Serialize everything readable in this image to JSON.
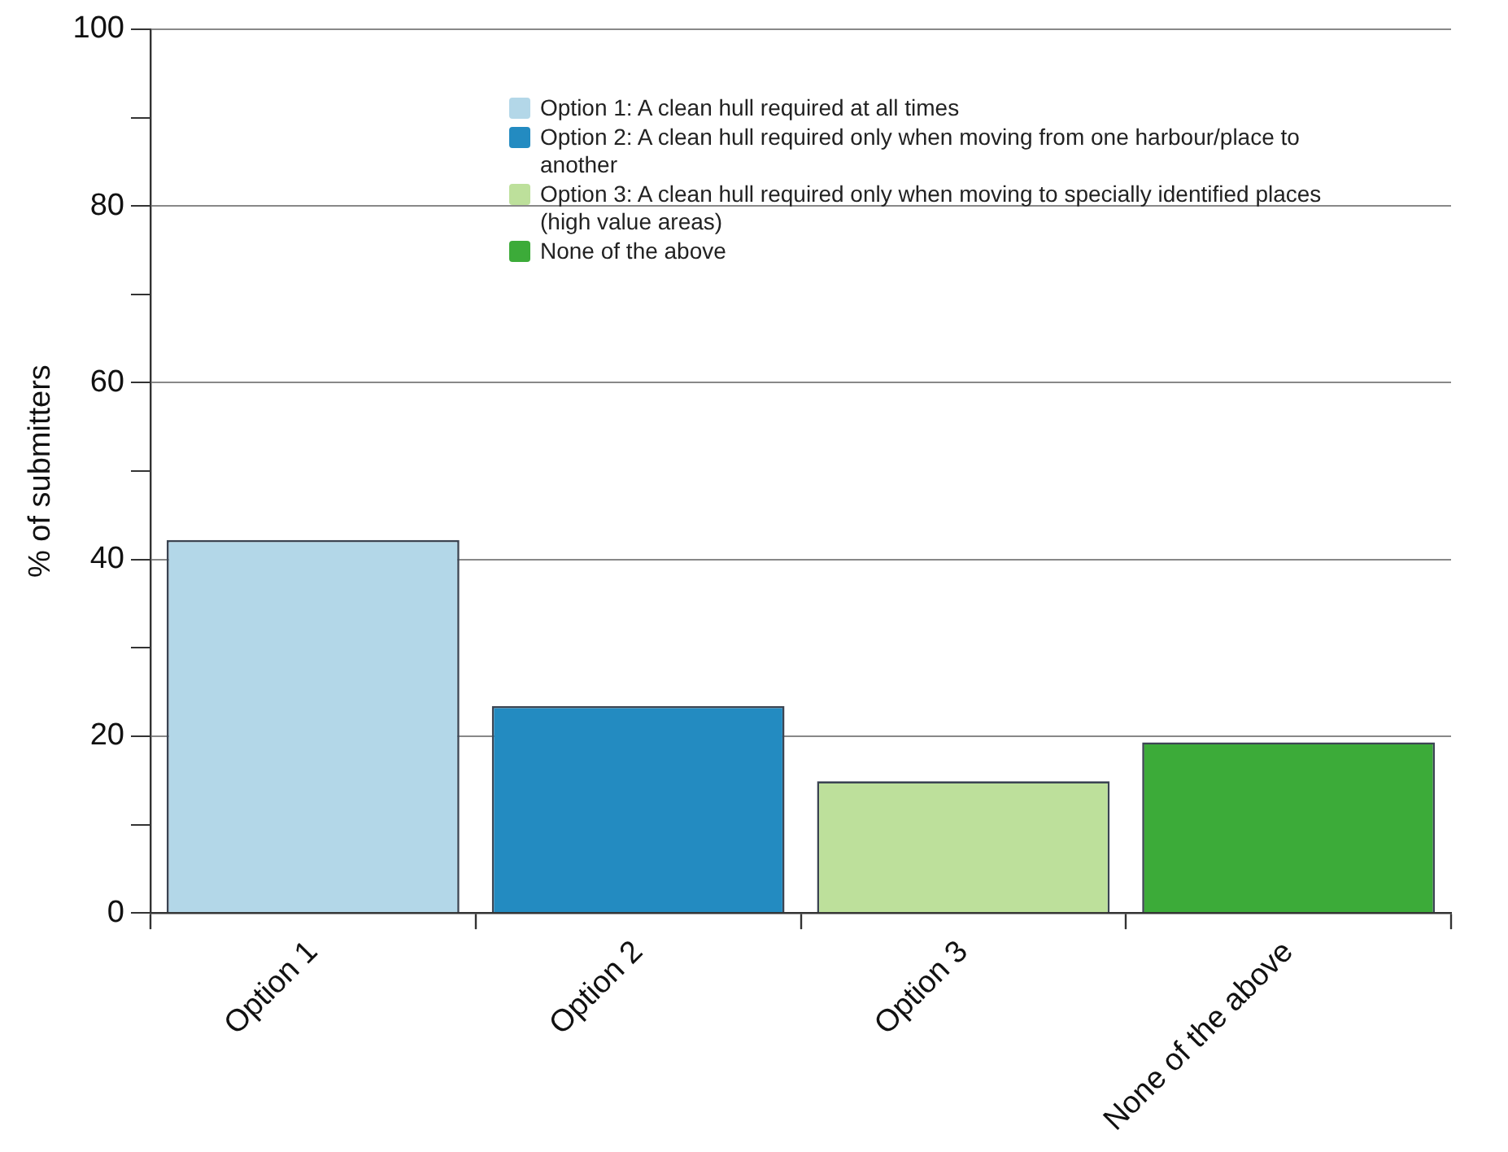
{
  "chart_data": {
    "type": "bar",
    "ylabel": "% of submitters",
    "categories": [
      "Option 1",
      "Option 2",
      "Option 3",
      "None of the above"
    ],
    "series": [
      {
        "name": "Option 1: A clean hull required at all times",
        "color": "#b3d7e8",
        "values": [
          42.2,
          null,
          null,
          null
        ]
      },
      {
        "name": "Option 2: A clean hull required only when moving from one harbour/place to another",
        "color": "#238bc1",
        "values": [
          null,
          23.4,
          null,
          null
        ]
      },
      {
        "name": "Option 3: A clean hull required only when moving to specially identified places (high value areas)",
        "color": "#bde09b",
        "values": [
          null,
          null,
          14.9,
          null
        ]
      },
      {
        "name": "None of the above",
        "color": "#3cab39",
        "values": [
          null,
          null,
          null,
          19.3
        ]
      }
    ],
    "ylim": [
      0,
      100
    ],
    "yticks": [
      0,
      {
        "value": 10,
        "label": null
      },
      20,
      {
        "value": 30,
        "label": null
      },
      40,
      {
        "value": 50,
        "label": null
      },
      60,
      {
        "value": 70,
        "label": null
      },
      80,
      {
        "value": 90,
        "label": null
      },
      100
    ],
    "grid": "y",
    "legend": "top"
  }
}
